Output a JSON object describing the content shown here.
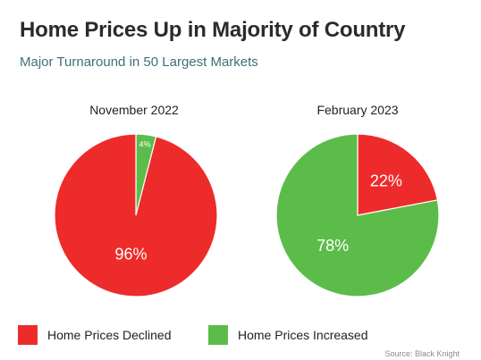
{
  "header": {
    "title": "Home Prices Up in Majority of Country",
    "subtitle": "Major Turnaround in 50 Largest Markets"
  },
  "colors": {
    "declined": "#ee2b2b",
    "increased": "#5cbc4a",
    "slice_border": "#ffffff"
  },
  "chart_data": [
    {
      "type": "pie",
      "title": "November 2022",
      "slices": [
        {
          "label": "Home Prices Declined",
          "value": 96,
          "text": "96%"
        },
        {
          "label": "Home Prices Increased",
          "value": 4,
          "text": "4%"
        }
      ]
    },
    {
      "type": "pie",
      "title": "February 2023",
      "slices": [
        {
          "label": "Home Prices Declined",
          "value": 22,
          "text": "22%"
        },
        {
          "label": "Home Prices Increased",
          "value": 78,
          "text": "78%"
        }
      ]
    }
  ],
  "legend": {
    "position": "bottom-left",
    "items": [
      {
        "label": "Home Prices Declined",
        "color": "#ee2b2b"
      },
      {
        "label": "Home Prices Increased",
        "color": "#5cbc4a"
      }
    ]
  },
  "source": "Source: Black Knight"
}
